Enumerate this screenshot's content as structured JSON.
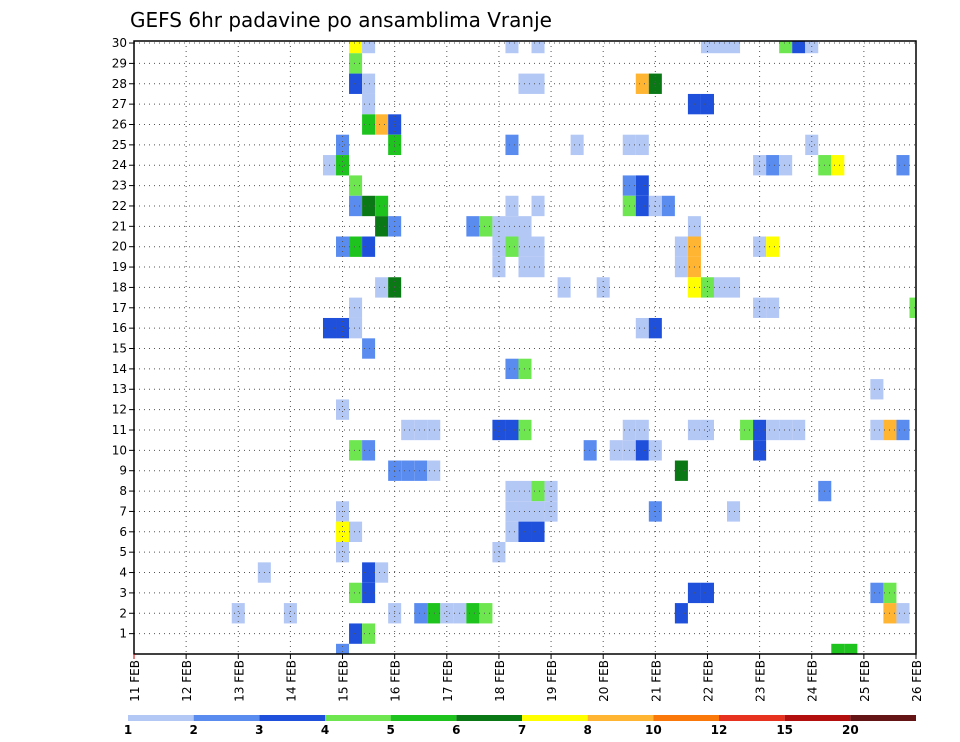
{
  "chart_data": {
    "type": "heatmap",
    "title": "GEFS 6hr padavine po ansamblima Vranje",
    "xlabel": "",
    "ylabel": "",
    "x_ticks": [
      "11 FEB",
      "12 FEB",
      "13 FEB",
      "14 FEB",
      "15 FEB",
      "16 FEB",
      "17 FEB",
      "18 FEB",
      "19 FEB",
      "20 FEB",
      "21 FEB",
      "22 FEB",
      "23 FEB",
      "24 FEB",
      "25 FEB",
      "26 FEB"
    ],
    "y_ticks": [
      "1",
      "2",
      "3",
      "4",
      "5",
      "6",
      "7",
      "8",
      "9",
      "10",
      "11",
      "12",
      "13",
      "14",
      "15",
      "16",
      "17",
      "18",
      "19",
      "20",
      "21",
      "22",
      "23",
      "24",
      "25",
      "26",
      "27",
      "28",
      "29",
      "30"
    ],
    "x_range": [
      "11 FEB 00Z",
      "26 FEB 00Z"
    ],
    "time_step_hours": 6,
    "y_range": [
      0,
      30
    ],
    "grid": true,
    "colorbar": {
      "labels": [
        "1",
        "2",
        "3",
        "4",
        "5",
        "6",
        "7",
        "8",
        "10",
        "12",
        "15",
        "20"
      ],
      "colors": [
        "#b4c8f5",
        "#5a8cf0",
        "#1e50dc",
        "#6ee650",
        "#1ec31e",
        "#0a7814",
        "#ffff00",
        "#ffb432",
        "#fa780a",
        "#e6321e",
        "#b40f0f",
        "#641414"
      ]
    },
    "cells": [
      {
        "t": "15 FEB 06Z",
        "m": 30,
        "c": "#ffff00"
      },
      {
        "t": "15 FEB 12Z",
        "m": 30,
        "c": "#b4c8f5"
      },
      {
        "t": "18 FEB 06Z",
        "m": 30,
        "c": "#b4c8f5"
      },
      {
        "t": "18 FEB 18Z",
        "m": 30,
        "c": "#b4c8f5"
      },
      {
        "t": "22 FEB 00Z",
        "m": 30,
        "c": "#b4c8f5"
      },
      {
        "t": "22 FEB 06Z",
        "m": 30,
        "c": "#b4c8f5"
      },
      {
        "t": "22 FEB 12Z",
        "m": 30,
        "c": "#b4c8f5"
      },
      {
        "t": "23 FEB 12Z",
        "m": 30,
        "c": "#6ee650"
      },
      {
        "t": "23 FEB 18Z",
        "m": 30,
        "c": "#1e50dc"
      },
      {
        "t": "24 FEB 00Z",
        "m": 30,
        "c": "#b4c8f5"
      },
      {
        "t": "15 FEB 06Z",
        "m": 29,
        "c": "#6ee650"
      },
      {
        "t": "15 FEB 06Z",
        "m": 28,
        "c": "#1e50dc"
      },
      {
        "t": "15 FEB 12Z",
        "m": 28,
        "c": "#b4c8f5"
      },
      {
        "t": "18 FEB 12Z",
        "m": 28,
        "c": "#b4c8f5"
      },
      {
        "t": "18 FEB 18Z",
        "m": 28,
        "c": "#b4c8f5"
      },
      {
        "t": "20 FEB 18Z",
        "m": 28,
        "c": "#ffb432"
      },
      {
        "t": "21 FEB 00Z",
        "m": 28,
        "c": "#0a7814"
      },
      {
        "t": "15 FEB 12Z",
        "m": 27,
        "c": "#b4c8f5"
      },
      {
        "t": "21 FEB 18Z",
        "m": 27,
        "c": "#1e50dc"
      },
      {
        "t": "22 FEB 00Z",
        "m": 27,
        "c": "#1e50dc"
      },
      {
        "t": "15 FEB 12Z",
        "m": 26,
        "c": "#1ec31e"
      },
      {
        "t": "15 FEB 18Z",
        "m": 26,
        "c": "#ffb432"
      },
      {
        "t": "16 FEB 00Z",
        "m": 26,
        "c": "#1e50dc"
      },
      {
        "t": "15 FEB 00Z",
        "m": 25,
        "c": "#5a8cf0"
      },
      {
        "t": "16 FEB 00Z",
        "m": 25,
        "c": "#1ec31e"
      },
      {
        "t": "18 FEB 06Z",
        "m": 25,
        "c": "#5a8cf0"
      },
      {
        "t": "19 FEB 12Z",
        "m": 25,
        "c": "#b4c8f5"
      },
      {
        "t": "20 FEB 12Z",
        "m": 25,
        "c": "#b4c8f5"
      },
      {
        "t": "20 FEB 18Z",
        "m": 25,
        "c": "#b4c8f5"
      },
      {
        "t": "24 FEB 00Z",
        "m": 25,
        "c": "#b4c8f5"
      },
      {
        "t": "14 FEB 18Z",
        "m": 24,
        "c": "#b4c8f5"
      },
      {
        "t": "15 FEB 00Z",
        "m": 24,
        "c": "#1ec31e"
      },
      {
        "t": "23 FEB 00Z",
        "m": 24,
        "c": "#b4c8f5"
      },
      {
        "t": "23 FEB 06Z",
        "m": 24,
        "c": "#5a8cf0"
      },
      {
        "t": "23 FEB 12Z",
        "m": 24,
        "c": "#b4c8f5"
      },
      {
        "t": "24 FEB 06Z",
        "m": 24,
        "c": "#6ee650"
      },
      {
        "t": "24 FEB 12Z",
        "m": 24,
        "c": "#ffff00"
      },
      {
        "t": "25 FEB 18Z",
        "m": 24,
        "c": "#5a8cf0"
      },
      {
        "t": "15 FEB 06Z",
        "m": 23,
        "c": "#6ee650"
      },
      {
        "t": "20 FEB 12Z",
        "m": 23,
        "c": "#5a8cf0"
      },
      {
        "t": "20 FEB 18Z",
        "m": 23,
        "c": "#1e50dc"
      },
      {
        "t": "15 FEB 06Z",
        "m": 22,
        "c": "#5a8cf0"
      },
      {
        "t": "15 FEB 12Z",
        "m": 22,
        "c": "#0a7814"
      },
      {
        "t": "15 FEB 18Z",
        "m": 22,
        "c": "#1ec31e"
      },
      {
        "t": "18 FEB 06Z",
        "m": 22,
        "c": "#b4c8f5"
      },
      {
        "t": "18 FEB 18Z",
        "m": 22,
        "c": "#b4c8f5"
      },
      {
        "t": "20 FEB 12Z",
        "m": 22,
        "c": "#6ee650"
      },
      {
        "t": "20 FEB 18Z",
        "m": 22,
        "c": "#1e50dc"
      },
      {
        "t": "21 FEB 00Z",
        "m": 22,
        "c": "#b4c8f5"
      },
      {
        "t": "21 FEB 06Z",
        "m": 22,
        "c": "#5a8cf0"
      },
      {
        "t": "15 FEB 18Z",
        "m": 21,
        "c": "#0a7814"
      },
      {
        "t": "16 FEB 00Z",
        "m": 21,
        "c": "#5a8cf0"
      },
      {
        "t": "17 FEB 12Z",
        "m": 21,
        "c": "#5a8cf0"
      },
      {
        "t": "17 FEB 18Z",
        "m": 21,
        "c": "#6ee650"
      },
      {
        "t": "18 FEB 00Z",
        "m": 21,
        "c": "#b4c8f5"
      },
      {
        "t": "18 FEB 06Z",
        "m": 21,
        "c": "#b4c8f5"
      },
      {
        "t": "18 FEB 12Z",
        "m": 21,
        "c": "#b4c8f5"
      },
      {
        "t": "21 FEB 18Z",
        "m": 21,
        "c": "#b4c8f5"
      },
      {
        "t": "15 FEB 00Z",
        "m": 20,
        "c": "#5a8cf0"
      },
      {
        "t": "15 FEB 06Z",
        "m": 20,
        "c": "#1ec31e"
      },
      {
        "t": "15 FEB 12Z",
        "m": 20,
        "c": "#1e50dc"
      },
      {
        "t": "18 FEB 00Z",
        "m": 20,
        "c": "#b4c8f5"
      },
      {
        "t": "18 FEB 06Z",
        "m": 20,
        "c": "#6ee650"
      },
      {
        "t": "18 FEB 12Z",
        "m": 20,
        "c": "#b4c8f5"
      },
      {
        "t": "18 FEB 18Z",
        "m": 20,
        "c": "#b4c8f5"
      },
      {
        "t": "21 FEB 12Z",
        "m": 20,
        "c": "#b4c8f5"
      },
      {
        "t": "21 FEB 18Z",
        "m": 20,
        "c": "#ffb432"
      },
      {
        "t": "23 FEB 00Z",
        "m": 20,
        "c": "#b4c8f5"
      },
      {
        "t": "23 FEB 06Z",
        "m": 20,
        "c": "#ffff00"
      },
      {
        "t": "18 FEB 00Z",
        "m": 19,
        "c": "#b4c8f5"
      },
      {
        "t": "18 FEB 12Z",
        "m": 19,
        "c": "#b4c8f5"
      },
      {
        "t": "18 FEB 18Z",
        "m": 19,
        "c": "#b4c8f5"
      },
      {
        "t": "21 FEB 12Z",
        "m": 19,
        "c": "#b4c8f5"
      },
      {
        "t": "21 FEB 18Z",
        "m": 19,
        "c": "#ffb432"
      },
      {
        "t": "15 FEB 18Z",
        "m": 18,
        "c": "#b4c8f5"
      },
      {
        "t": "16 FEB 00Z",
        "m": 18,
        "c": "#0a7814"
      },
      {
        "t": "19 FEB 06Z",
        "m": 18,
        "c": "#b4c8f5"
      },
      {
        "t": "20 FEB 00Z",
        "m": 18,
        "c": "#b4c8f5"
      },
      {
        "t": "21 FEB 18Z",
        "m": 18,
        "c": "#ffff00"
      },
      {
        "t": "22 FEB 00Z",
        "m": 18,
        "c": "#6ee650"
      },
      {
        "t": "22 FEB 06Z",
        "m": 18,
        "c": "#b4c8f5"
      },
      {
        "t": "22 FEB 12Z",
        "m": 18,
        "c": "#b4c8f5"
      },
      {
        "t": "15 FEB 06Z",
        "m": 17,
        "c": "#b4c8f5"
      },
      {
        "t": "23 FEB 00Z",
        "m": 17,
        "c": "#b4c8f5"
      },
      {
        "t": "23 FEB 06Z",
        "m": 17,
        "c": "#b4c8f5"
      },
      {
        "t": "26 FEB 00Z",
        "m": 17,
        "c": "#6ee650"
      },
      {
        "t": "14 FEB 18Z",
        "m": 16,
        "c": "#1e50dc"
      },
      {
        "t": "15 FEB 00Z",
        "m": 16,
        "c": "#1e50dc"
      },
      {
        "t": "15 FEB 06Z",
        "m": 16,
        "c": "#b4c8f5"
      },
      {
        "t": "20 FEB 18Z",
        "m": 16,
        "c": "#b4c8f5"
      },
      {
        "t": "21 FEB 00Z",
        "m": 16,
        "c": "#1e50dc"
      },
      {
        "t": "15 FEB 12Z",
        "m": 15,
        "c": "#5a8cf0"
      },
      {
        "t": "18 FEB 06Z",
        "m": 14,
        "c": "#5a8cf0"
      },
      {
        "t": "18 FEB 12Z",
        "m": 14,
        "c": "#6ee650"
      },
      {
        "t": "25 FEB 06Z",
        "m": 13,
        "c": "#b4c8f5"
      },
      {
        "t": "15 FEB 00Z",
        "m": 12,
        "c": "#b4c8f5"
      },
      {
        "t": "16 FEB 06Z",
        "m": 11,
        "c": "#b4c8f5"
      },
      {
        "t": "16 FEB 12Z",
        "m": 11,
        "c": "#b4c8f5"
      },
      {
        "t": "16 FEB 18Z",
        "m": 11,
        "c": "#b4c8f5"
      },
      {
        "t": "18 FEB 00Z",
        "m": 11,
        "c": "#1e50dc"
      },
      {
        "t": "18 FEB 06Z",
        "m": 11,
        "c": "#1e50dc"
      },
      {
        "t": "18 FEB 12Z",
        "m": 11,
        "c": "#6ee650"
      },
      {
        "t": "20 FEB 12Z",
        "m": 11,
        "c": "#b4c8f5"
      },
      {
        "t": "20 FEB 18Z",
        "m": 11,
        "c": "#b4c8f5"
      },
      {
        "t": "21 FEB 18Z",
        "m": 11,
        "c": "#b4c8f5"
      },
      {
        "t": "22 FEB 00Z",
        "m": 11,
        "c": "#b4c8f5"
      },
      {
        "t": "22 FEB 18Z",
        "m": 11,
        "c": "#6ee650"
      },
      {
        "t": "23 FEB 00Z",
        "m": 11,
        "c": "#1e50dc"
      },
      {
        "t": "23 FEB 06Z",
        "m": 11,
        "c": "#b4c8f5"
      },
      {
        "t": "23 FEB 12Z",
        "m": 11,
        "c": "#b4c8f5"
      },
      {
        "t": "23 FEB 18Z",
        "m": 11,
        "c": "#b4c8f5"
      },
      {
        "t": "25 FEB 06Z",
        "m": 11,
        "c": "#b4c8f5"
      },
      {
        "t": "25 FEB 12Z",
        "m": 11,
        "c": "#ffb432"
      },
      {
        "t": "25 FEB 18Z",
        "m": 11,
        "c": "#5a8cf0"
      },
      {
        "t": "15 FEB 06Z",
        "m": 10,
        "c": "#6ee650"
      },
      {
        "t": "15 FEB 12Z",
        "m": 10,
        "c": "#5a8cf0"
      },
      {
        "t": "19 FEB 18Z",
        "m": 10,
        "c": "#5a8cf0"
      },
      {
        "t": "20 FEB 06Z",
        "m": 10,
        "c": "#b4c8f5"
      },
      {
        "t": "20 FEB 12Z",
        "m": 10,
        "c": "#b4c8f5"
      },
      {
        "t": "20 FEB 18Z",
        "m": 10,
        "c": "#1e50dc"
      },
      {
        "t": "21 FEB 00Z",
        "m": 10,
        "c": "#b4c8f5"
      },
      {
        "t": "23 FEB 00Z",
        "m": 10,
        "c": "#1e50dc"
      },
      {
        "t": "16 FEB 00Z",
        "m": 9,
        "c": "#5a8cf0"
      },
      {
        "t": "16 FEB 06Z",
        "m": 9,
        "c": "#5a8cf0"
      },
      {
        "t": "16 FEB 12Z",
        "m": 9,
        "c": "#5a8cf0"
      },
      {
        "t": "16 FEB 18Z",
        "m": 9,
        "c": "#b4c8f5"
      },
      {
        "t": "21 FEB 12Z",
        "m": 9,
        "c": "#0a7814"
      },
      {
        "t": "18 FEB 06Z",
        "m": 8,
        "c": "#b4c8f5"
      },
      {
        "t": "18 FEB 12Z",
        "m": 8,
        "c": "#b4c8f5"
      },
      {
        "t": "18 FEB 18Z",
        "m": 8,
        "c": "#6ee650"
      },
      {
        "t": "19 FEB 00Z",
        "m": 8,
        "c": "#b4c8f5"
      },
      {
        "t": "24 FEB 06Z",
        "m": 8,
        "c": "#5a8cf0"
      },
      {
        "t": "15 FEB 00Z",
        "m": 7,
        "c": "#b4c8f5"
      },
      {
        "t": "18 FEB 06Z",
        "m": 7,
        "c": "#b4c8f5"
      },
      {
        "t": "18 FEB 12Z",
        "m": 7,
        "c": "#b4c8f5"
      },
      {
        "t": "18 FEB 18Z",
        "m": 7,
        "c": "#b4c8f5"
      },
      {
        "t": "19 FEB 00Z",
        "m": 7,
        "c": "#b4c8f5"
      },
      {
        "t": "21 FEB 00Z",
        "m": 7,
        "c": "#5a8cf0"
      },
      {
        "t": "22 FEB 12Z",
        "m": 7,
        "c": "#b4c8f5"
      },
      {
        "t": "15 FEB 00Z",
        "m": 6,
        "c": "#ffff00"
      },
      {
        "t": "15 FEB 06Z",
        "m": 6,
        "c": "#b4c8f5"
      },
      {
        "t": "18 FEB 06Z",
        "m": 6,
        "c": "#b4c8f5"
      },
      {
        "t": "18 FEB 12Z",
        "m": 6,
        "c": "#1e50dc"
      },
      {
        "t": "18 FEB 18Z",
        "m": 6,
        "c": "#1e50dc"
      },
      {
        "t": "15 FEB 00Z",
        "m": 5,
        "c": "#b4c8f5"
      },
      {
        "t": "18 FEB 00Z",
        "m": 5,
        "c": "#b4c8f5"
      },
      {
        "t": "13 FEB 12Z",
        "m": 4,
        "c": "#b4c8f5"
      },
      {
        "t": "15 FEB 12Z",
        "m": 4,
        "c": "#1e50dc"
      },
      {
        "t": "15 FEB 18Z",
        "m": 4,
        "c": "#b4c8f5"
      },
      {
        "t": "15 FEB 06Z",
        "m": 3,
        "c": "#6ee650"
      },
      {
        "t": "15 FEB 12Z",
        "m": 3,
        "c": "#1e50dc"
      },
      {
        "t": "21 FEB 18Z",
        "m": 3,
        "c": "#1e50dc"
      },
      {
        "t": "22 FEB 00Z",
        "m": 3,
        "c": "#1e50dc"
      },
      {
        "t": "25 FEB 06Z",
        "m": 3,
        "c": "#5a8cf0"
      },
      {
        "t": "25 FEB 12Z",
        "m": 3,
        "c": "#6ee650"
      },
      {
        "t": "13 FEB 00Z",
        "m": 2,
        "c": "#b4c8f5"
      },
      {
        "t": "14 FEB 00Z",
        "m": 2,
        "c": "#b4c8f5"
      },
      {
        "t": "16 FEB 00Z",
        "m": 2,
        "c": "#b4c8f5"
      },
      {
        "t": "16 FEB 12Z",
        "m": 2,
        "c": "#5a8cf0"
      },
      {
        "t": "16 FEB 18Z",
        "m": 2,
        "c": "#1ec31e"
      },
      {
        "t": "17 FEB 00Z",
        "m": 2,
        "c": "#b4c8f5"
      },
      {
        "t": "17 FEB 06Z",
        "m": 2,
        "c": "#b4c8f5"
      },
      {
        "t": "17 FEB 12Z",
        "m": 2,
        "c": "#1ec31e"
      },
      {
        "t": "17 FEB 18Z",
        "m": 2,
        "c": "#6ee650"
      },
      {
        "t": "21 FEB 12Z",
        "m": 2,
        "c": "#1e50dc"
      },
      {
        "t": "25 FEB 12Z",
        "m": 2,
        "c": "#ffb432"
      },
      {
        "t": "25 FEB 18Z",
        "m": 2,
        "c": "#b4c8f5"
      },
      {
        "t": "15 FEB 06Z",
        "m": 1,
        "c": "#1e50dc"
      },
      {
        "t": "15 FEB 12Z",
        "m": 1,
        "c": "#6ee650"
      },
      {
        "t": "15 FEB 00Z",
        "m": 0,
        "c": "#5a8cf0"
      },
      {
        "t": "24 FEB 12Z",
        "m": 0,
        "c": "#1ec31e"
      },
      {
        "t": "24 FEB 18Z",
        "m": 0,
        "c": "#1ec31e"
      }
    ]
  }
}
